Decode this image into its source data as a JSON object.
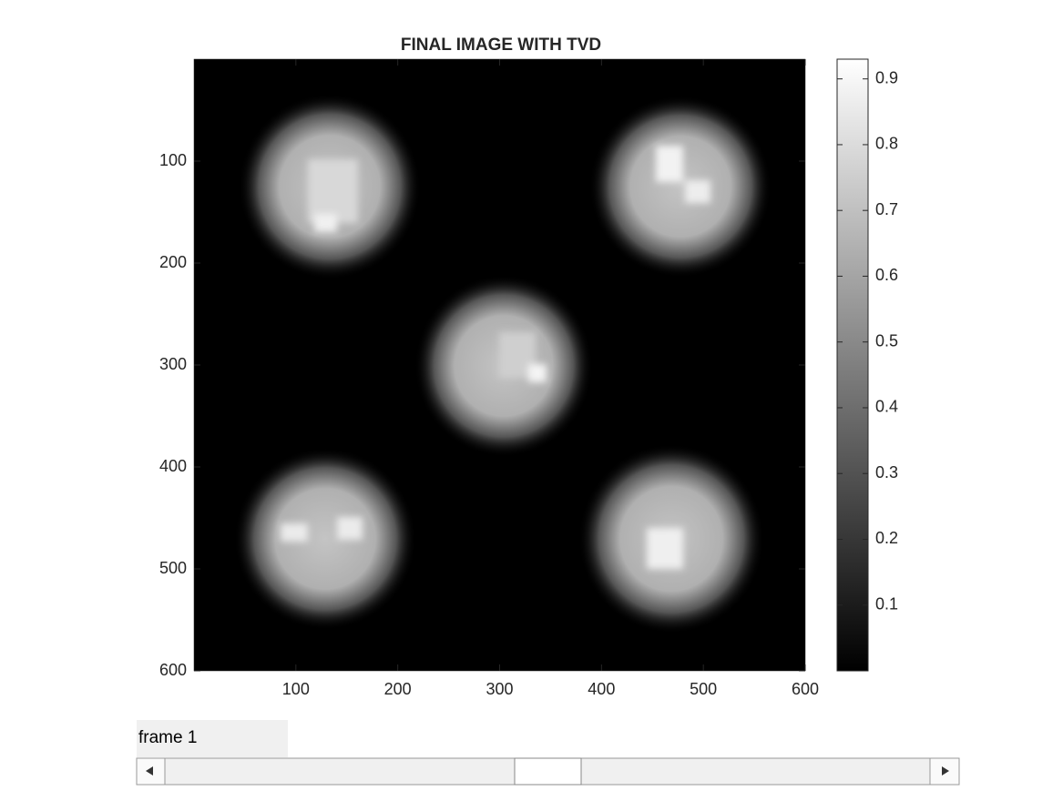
{
  "chart_data": {
    "type": "image",
    "title": "FINAL IMAGE WITH TVD",
    "colormap": "gray",
    "xlim": [
      0,
      600
    ],
    "xticks": [
      100,
      200,
      300,
      400,
      500,
      600
    ],
    "ylim": [
      0,
      600
    ],
    "yticks": [
      100,
      200,
      300,
      400,
      500,
      600
    ],
    "y_direction": "reverse",
    "colorbar": {
      "clim": [
        0,
        0.93
      ],
      "ticks": [
        0.1,
        0.2,
        0.3,
        0.4,
        0.5,
        0.6,
        0.7,
        0.8,
        0.9
      ]
    }
  },
  "controls": {
    "label": "frame 1"
  }
}
